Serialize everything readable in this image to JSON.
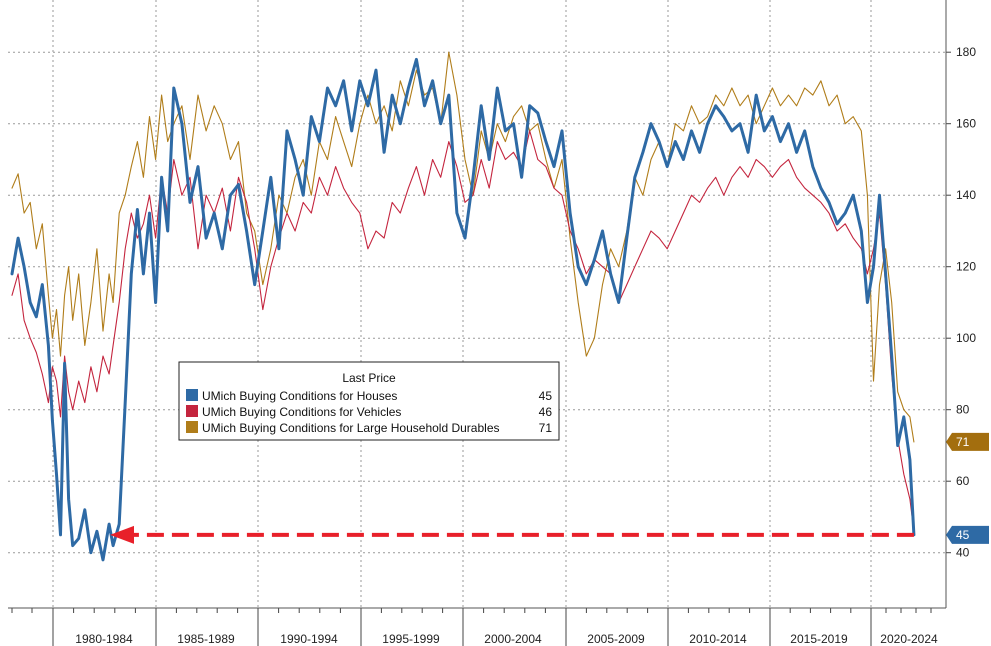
{
  "chart_data": {
    "type": "line",
    "title": "",
    "xlabel": "",
    "ylabel": "",
    "ylim": [
      20,
      195
    ],
    "y_ticks": [
      40,
      60,
      80,
      100,
      120,
      140,
      160,
      180
    ],
    "x_ticks": [
      "1980-1984",
      "1985-1989",
      "1990-1994",
      "1995-1999",
      "2000-2004",
      "2005-2009",
      "2010-2014",
      "2015-2019",
      "2020-2024"
    ],
    "xlim": [
      1978.0,
      2023.0
    ],
    "grid": true,
    "legend": {
      "title": "Last Price",
      "placement": "center-left",
      "entries": [
        {
          "label": "UMich Buying Conditions for Houses",
          "value": "45",
          "color": "#2e6aa5"
        },
        {
          "label": "UMich Buying Conditions for Vehicles",
          "value": "46",
          "color": "#c4253e"
        },
        {
          "label": "UMich Buying Conditions for Large Household Durables",
          "value": "71",
          "color": "#b07d1a"
        }
      ]
    },
    "last_value_badges": [
      {
        "value": "71",
        "color": "#a36e0e"
      },
      {
        "value": "45",
        "color": "#2e6aa5"
      }
    ],
    "annotation": {
      "type": "dashed-arrow",
      "from_x": 2022.6,
      "to_x": 1981.0,
      "y": 45,
      "color": "#e8202a"
    },
    "series": [
      {
        "name": "UMich Buying Conditions for Houses",
        "color": "#2e6aa5",
        "x": [
          1978.0,
          1978.3,
          1978.6,
          1978.9,
          1979.2,
          1979.5,
          1979.8,
          1980.0,
          1980.2,
          1980.4,
          1980.6,
          1980.8,
          1981.0,
          1981.3,
          1981.6,
          1981.9,
          1982.2,
          1982.5,
          1982.8,
          1983.0,
          1983.3,
          1983.6,
          1983.9,
          1984.2,
          1984.5,
          1984.8,
          1985.1,
          1985.4,
          1985.7,
          1986.0,
          1986.4,
          1986.8,
          1987.2,
          1987.6,
          1988.0,
          1988.4,
          1988.8,
          1989.2,
          1989.6,
          1990.0,
          1990.4,
          1990.8,
          1991.2,
          1991.6,
          1992.0,
          1992.4,
          1992.8,
          1993.2,
          1993.6,
          1994.0,
          1994.4,
          1994.8,
          1995.2,
          1995.6,
          1996.0,
          1996.4,
          1996.8,
          1997.2,
          1997.6,
          1998.0,
          1998.4,
          1998.8,
          1999.2,
          1999.6,
          2000.0,
          2000.4,
          2000.8,
          2001.2,
          2001.6,
          2002.0,
          2002.4,
          2002.8,
          2003.2,
          2003.6,
          2004.0,
          2004.4,
          2004.8,
          2005.2,
          2005.6,
          2006.0,
          2006.4,
          2006.8,
          2007.2,
          2007.6,
          2008.0,
          2008.4,
          2008.8,
          2009.2,
          2009.6,
          2010.0,
          2010.4,
          2010.8,
          2011.2,
          2011.6,
          2012.0,
          2012.4,
          2012.8,
          2013.2,
          2013.6,
          2014.0,
          2014.4,
          2014.8,
          2015.2,
          2015.6,
          2016.0,
          2016.4,
          2016.8,
          2017.2,
          2017.6,
          2018.0,
          2018.4,
          2018.8,
          2019.2,
          2019.6,
          2020.0,
          2020.3,
          2020.6,
          2020.9,
          2021.2,
          2021.5,
          2021.8,
          2022.1,
          2022.4,
          2022.6
        ],
        "values": [
          118,
          128,
          120,
          110,
          106,
          115,
          98,
          77,
          62,
          45,
          93,
          55,
          42,
          44,
          52,
          40,
          46,
          38,
          48,
          42,
          48,
          82,
          118,
          136,
          118,
          135,
          110,
          145,
          130,
          170,
          160,
          138,
          148,
          128,
          135,
          125,
          140,
          143,
          130,
          115,
          130,
          145,
          125,
          158,
          150,
          140,
          162,
          155,
          170,
          165,
          172,
          158,
          172,
          165,
          175,
          152,
          168,
          160,
          170,
          178,
          165,
          172,
          160,
          168,
          135,
          128,
          145,
          165,
          150,
          170,
          158,
          160,
          145,
          165,
          163,
          155,
          148,
          158,
          135,
          120,
          115,
          122,
          130,
          118,
          110,
          128,
          145,
          152,
          160,
          155,
          148,
          155,
          150,
          158,
          152,
          160,
          165,
          162,
          158,
          160,
          152,
          168,
          158,
          162,
          155,
          160,
          152,
          158,
          148,
          142,
          138,
          132,
          135,
          140,
          130,
          110,
          120,
          140,
          118,
          95,
          70,
          78,
          66,
          45
        ]
      },
      {
        "name": "UMich Buying Conditions for Vehicles",
        "color": "#c4253e",
        "x": [
          1978.0,
          1978.3,
          1978.6,
          1978.9,
          1979.2,
          1979.5,
          1979.8,
          1980.0,
          1980.2,
          1980.4,
          1980.6,
          1980.8,
          1981.0,
          1981.3,
          1981.6,
          1981.9,
          1982.2,
          1982.5,
          1982.8,
          1983.0,
          1983.3,
          1983.6,
          1983.9,
          1984.2,
          1984.5,
          1984.8,
          1985.1,
          1985.4,
          1985.7,
          1986.0,
          1986.4,
          1986.8,
          1987.2,
          1987.6,
          1988.0,
          1988.4,
          1988.8,
          1989.2,
          1989.6,
          1990.0,
          1990.4,
          1990.8,
          1991.2,
          1991.6,
          1992.0,
          1992.4,
          1992.8,
          1993.2,
          1993.6,
          1994.0,
          1994.4,
          1994.8,
          1995.2,
          1995.6,
          1996.0,
          1996.4,
          1996.8,
          1997.2,
          1997.6,
          1998.0,
          1998.4,
          1998.8,
          1999.2,
          1999.6,
          2000.0,
          2000.4,
          2000.8,
          2001.2,
          2001.6,
          2002.0,
          2002.4,
          2002.8,
          2003.2,
          2003.6,
          2004.0,
          2004.4,
          2004.8,
          2005.2,
          2005.6,
          2006.0,
          2006.4,
          2006.8,
          2007.2,
          2007.6,
          2008.0,
          2008.4,
          2008.8,
          2009.2,
          2009.6,
          2010.0,
          2010.4,
          2010.8,
          2011.2,
          2011.6,
          2012.0,
          2012.4,
          2012.8,
          2013.2,
          2013.6,
          2014.0,
          2014.4,
          2014.8,
          2015.2,
          2015.6,
          2016.0,
          2016.4,
          2016.8,
          2017.2,
          2017.6,
          2018.0,
          2018.4,
          2018.8,
          2019.2,
          2019.6,
          2020.0,
          2020.3,
          2020.6,
          2020.9,
          2021.2,
          2021.5,
          2021.8,
          2022.1,
          2022.4,
          2022.6
        ],
        "values": [
          112,
          118,
          105,
          100,
          96,
          90,
          82,
          92,
          88,
          78,
          95,
          85,
          80,
          88,
          82,
          92,
          85,
          95,
          90,
          98,
          110,
          125,
          135,
          128,
          132,
          140,
          128,
          145,
          135,
          150,
          140,
          145,
          125,
          140,
          135,
          142,
          130,
          145,
          138,
          125,
          108,
          120,
          128,
          135,
          130,
          138,
          135,
          145,
          140,
          148,
          142,
          138,
          135,
          125,
          130,
          128,
          138,
          135,
          142,
          148,
          140,
          150,
          145,
          155,
          148,
          138,
          140,
          150,
          142,
          155,
          150,
          152,
          148,
          158,
          150,
          148,
          142,
          140,
          130,
          125,
          118,
          122,
          120,
          118,
          110,
          115,
          120,
          125,
          130,
          128,
          125,
          130,
          135,
          140,
          138,
          142,
          145,
          140,
          145,
          148,
          145,
          150,
          148,
          145,
          148,
          150,
          145,
          142,
          140,
          138,
          135,
          130,
          132,
          128,
          125,
          118,
          125,
          135,
          115,
          90,
          72,
          62,
          55,
          46
        ]
      },
      {
        "name": "UMich Buying Conditions for Large Household Durables",
        "color": "#b07d1a",
        "x": [
          1978.0,
          1978.3,
          1978.6,
          1978.9,
          1979.2,
          1979.5,
          1979.8,
          1980.0,
          1980.2,
          1980.4,
          1980.6,
          1980.8,
          1981.0,
          1981.3,
          1981.6,
          1981.9,
          1982.2,
          1982.5,
          1982.8,
          1983.0,
          1983.3,
          1983.6,
          1983.9,
          1984.2,
          1984.5,
          1984.8,
          1985.1,
          1985.4,
          1985.7,
          1986.0,
          1986.4,
          1986.8,
          1987.2,
          1987.6,
          1988.0,
          1988.4,
          1988.8,
          1989.2,
          1989.6,
          1990.0,
          1990.4,
          1990.8,
          1991.2,
          1991.6,
          1992.0,
          1992.4,
          1992.8,
          1993.2,
          1993.6,
          1994.0,
          1994.4,
          1994.8,
          1995.2,
          1995.6,
          1996.0,
          1996.4,
          1996.8,
          1997.2,
          1997.6,
          1998.0,
          1998.4,
          1998.8,
          1999.2,
          1999.6,
          2000.0,
          2000.4,
          2000.8,
          2001.2,
          2001.6,
          2002.0,
          2002.4,
          2002.8,
          2003.2,
          2003.6,
          2004.0,
          2004.4,
          2004.8,
          2005.2,
          2005.6,
          2006.0,
          2006.4,
          2006.8,
          2007.2,
          2007.6,
          2008.0,
          2008.4,
          2008.8,
          2009.2,
          2009.6,
          2010.0,
          2010.4,
          2010.8,
          2011.2,
          2011.6,
          2012.0,
          2012.4,
          2012.8,
          2013.2,
          2013.6,
          2014.0,
          2014.4,
          2014.8,
          2015.2,
          2015.6,
          2016.0,
          2016.4,
          2016.8,
          2017.2,
          2017.6,
          2018.0,
          2018.4,
          2018.8,
          2019.2,
          2019.6,
          2020.0,
          2020.3,
          2020.6,
          2020.9,
          2021.2,
          2021.5,
          2021.8,
          2022.1,
          2022.4,
          2022.6
        ],
        "values": [
          142,
          146,
          135,
          138,
          125,
          132,
          112,
          100,
          108,
          95,
          112,
          120,
          105,
          118,
          98,
          110,
          125,
          102,
          118,
          110,
          135,
          140,
          148,
          155,
          145,
          162,
          150,
          168,
          155,
          160,
          165,
          150,
          168,
          158,
          165,
          160,
          150,
          155,
          135,
          130,
          115,
          125,
          140,
          135,
          145,
          150,
          140,
          155,
          150,
          162,
          155,
          148,
          160,
          168,
          160,
          165,
          158,
          172,
          165,
          175,
          168,
          170,
          160,
          180,
          168,
          150,
          140,
          158,
          150,
          160,
          155,
          162,
          165,
          158,
          160,
          150,
          142,
          150,
          128,
          110,
          95,
          100,
          115,
          125,
          120,
          130,
          145,
          140,
          150,
          155,
          148,
          160,
          158,
          165,
          160,
          162,
          168,
          165,
          170,
          165,
          168,
          160,
          165,
          170,
          165,
          168,
          165,
          170,
          168,
          172,
          165,
          168,
          160,
          162,
          158,
          140,
          88,
          115,
          125,
          110,
          85,
          80,
          78,
          71
        ]
      }
    ]
  }
}
